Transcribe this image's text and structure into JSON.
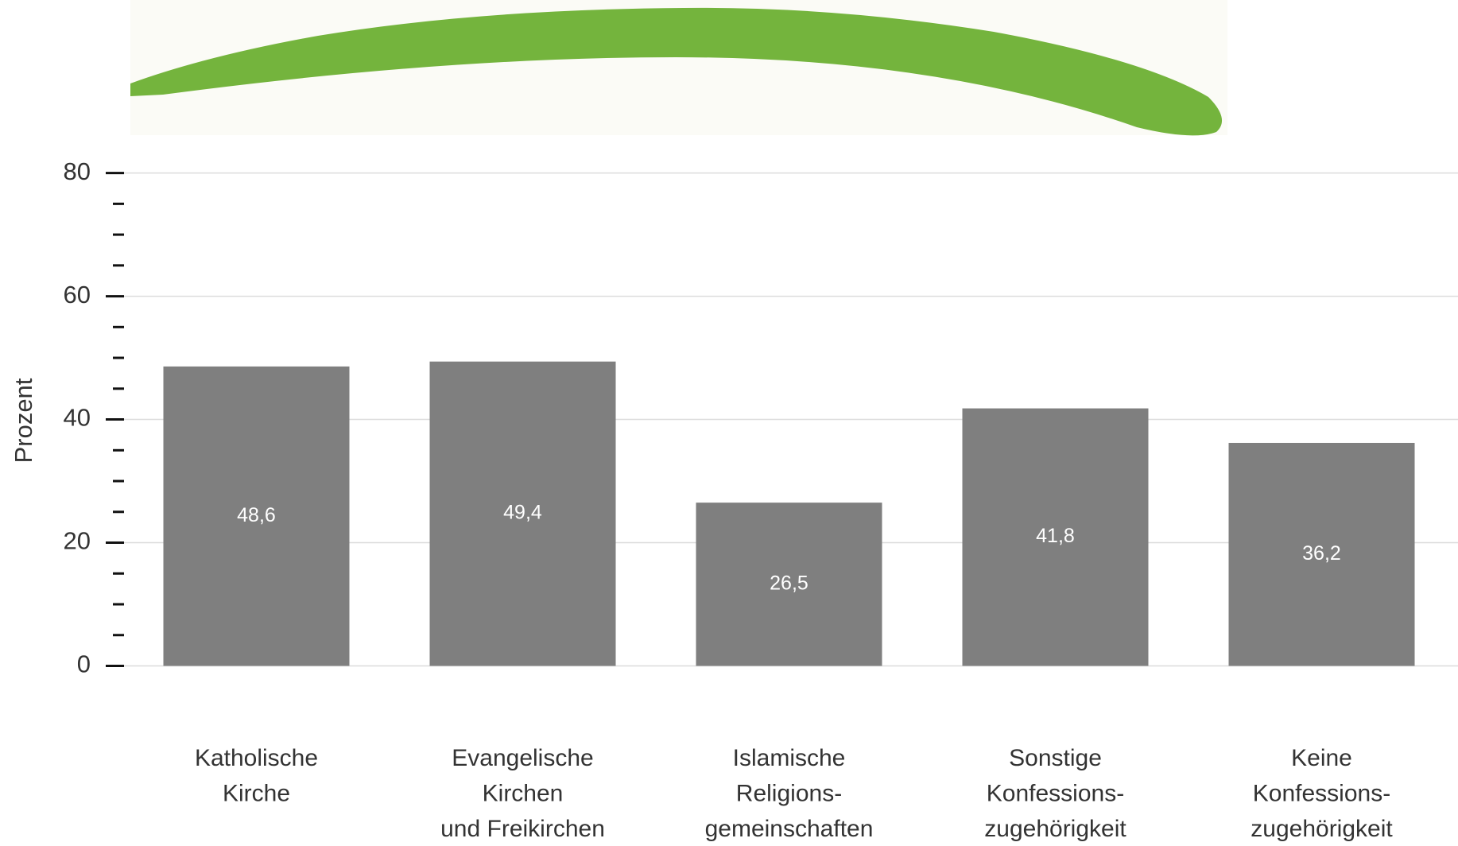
{
  "chart_data": {
    "type": "bar",
    "y_label": "Prozent",
    "categories": [
      [
        "Katholische",
        "Kirche"
      ],
      [
        "Evangelische",
        "Kirchen",
        "und Freikirchen"
      ],
      [
        "Islamische",
        "Religions-",
        "gemeinschaften"
      ],
      [
        "Sonstige",
        "Konfessions-",
        "zugehörigkeit"
      ],
      [
        "Keine",
        "Konfessions-",
        "zugehörigkeit"
      ]
    ],
    "values": [
      48.6,
      49.4,
      26.5,
      41.8,
      36.2
    ],
    "value_labels": [
      "48,6",
      "49,4",
      "26,5",
      "41,8",
      "36,2"
    ],
    "color": "#7f7f7f",
    "ylim": [
      0,
      80
    ],
    "yticks": [
      0,
      20,
      40,
      60,
      80
    ],
    "minor_yticks": [
      5,
      10,
      15,
      25,
      30,
      35,
      45,
      50,
      55,
      65,
      70,
      75
    ],
    "grid": true
  }
}
